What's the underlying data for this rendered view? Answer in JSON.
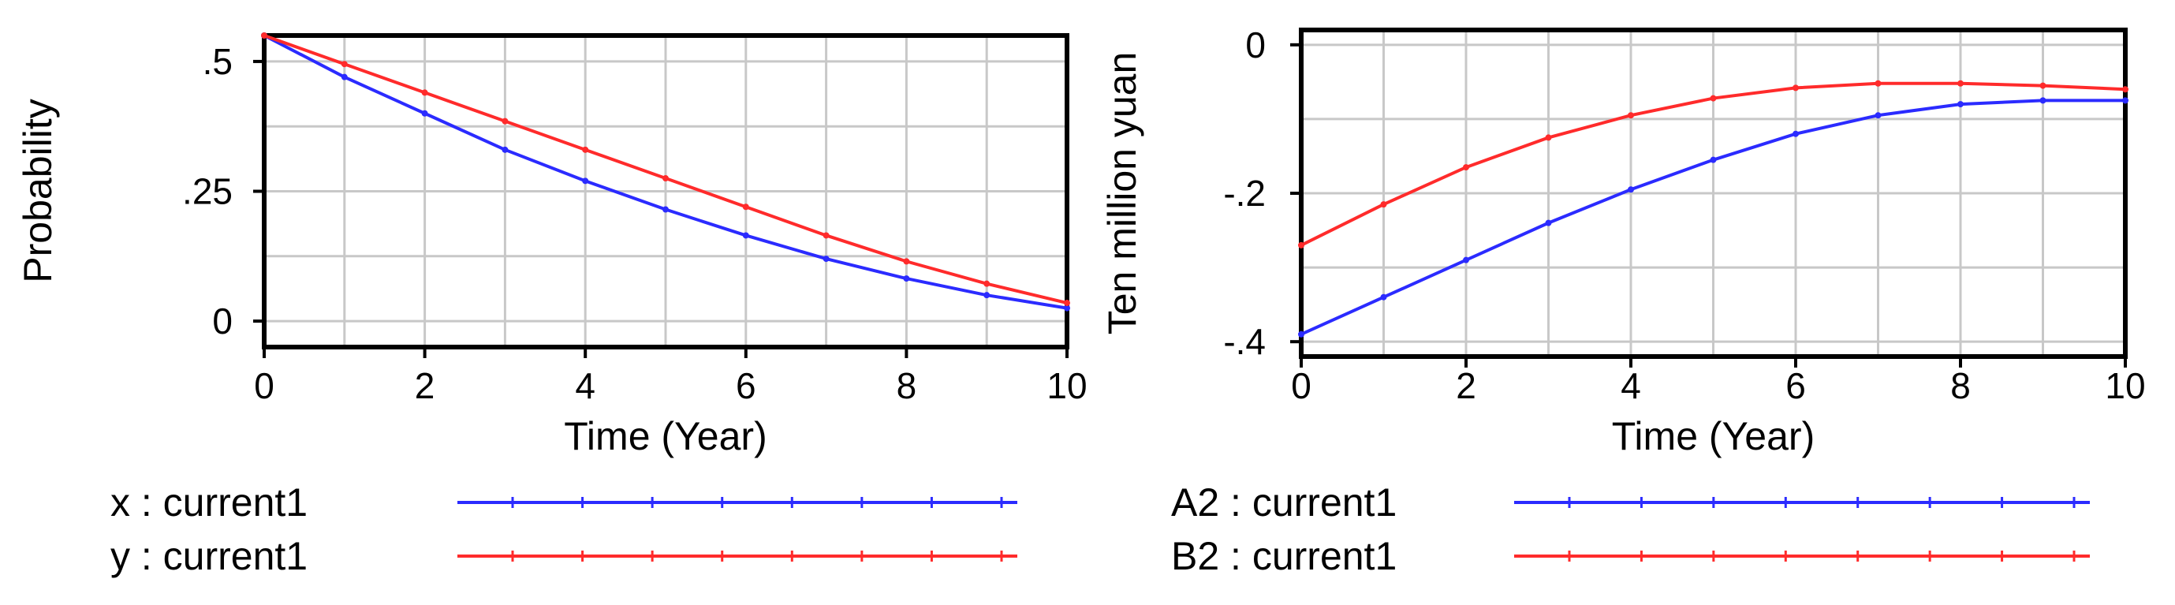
{
  "chart_data": [
    {
      "type": "line",
      "xlabel": "Time (Year)",
      "ylabel": "Probability",
      "xlim": [
        0,
        10
      ],
      "ylim": [
        -0.05,
        0.55
      ],
      "x_ticks": [
        0,
        2,
        4,
        6,
        8,
        10
      ],
      "x_tick_labels": [
        "0",
        "2",
        "4",
        "6",
        "8",
        "10"
      ],
      "y_ticks": [
        0,
        0.25,
        0.5
      ],
      "y_tick_labels": [
        "0",
        ".25",
        ".5"
      ],
      "grid": true,
      "legend_position": "bottom-left",
      "series": [
        {
          "name": "x : current1",
          "color": "#2b2bff",
          "x": [
            0,
            1,
            2,
            3,
            4,
            5,
            6,
            7,
            8,
            9,
            10
          ],
          "values": [
            0.55,
            0.47,
            0.4,
            0.33,
            0.27,
            0.215,
            0.165,
            0.12,
            0.082,
            0.05,
            0.025
          ]
        },
        {
          "name": "y : current1",
          "color": "#ff2b2b",
          "x": [
            0,
            1,
            2,
            3,
            4,
            5,
            6,
            7,
            8,
            9,
            10
          ],
          "values": [
            0.55,
            0.495,
            0.44,
            0.385,
            0.33,
            0.275,
            0.22,
            0.165,
            0.115,
            0.072,
            0.035
          ]
        }
      ]
    },
    {
      "type": "line",
      "xlabel": "Time (Year)",
      "ylabel": "Ten million yuan",
      "xlim": [
        0,
        10
      ],
      "ylim": [
        -0.42,
        0.02
      ],
      "x_ticks": [
        0,
        2,
        4,
        6,
        8,
        10
      ],
      "x_tick_labels": [
        "0",
        "2",
        "4",
        "6",
        "8",
        "10"
      ],
      "y_ticks": [
        -0.4,
        -0.2,
        0
      ],
      "y_tick_labels": [
        "-.4",
        "-.2",
        "0"
      ],
      "grid": true,
      "legend_position": "bottom-left",
      "series": [
        {
          "name": "A2 : current1",
          "color": "#2b2bff",
          "x": [
            0,
            1,
            2,
            3,
            4,
            5,
            6,
            7,
            8,
            9,
            10
          ],
          "values": [
            -0.39,
            -0.34,
            -0.29,
            -0.24,
            -0.195,
            -0.155,
            -0.12,
            -0.095,
            -0.08,
            -0.075,
            -0.075
          ]
        },
        {
          "name": "B2 : current1",
          "color": "#ff2b2b",
          "x": [
            0,
            1,
            2,
            3,
            4,
            5,
            6,
            7,
            8,
            9,
            10
          ],
          "values": [
            -0.27,
            -0.215,
            -0.165,
            -0.125,
            -0.095,
            -0.072,
            -0.058,
            -0.052,
            -0.052,
            -0.055,
            -0.06
          ]
        }
      ]
    }
  ]
}
